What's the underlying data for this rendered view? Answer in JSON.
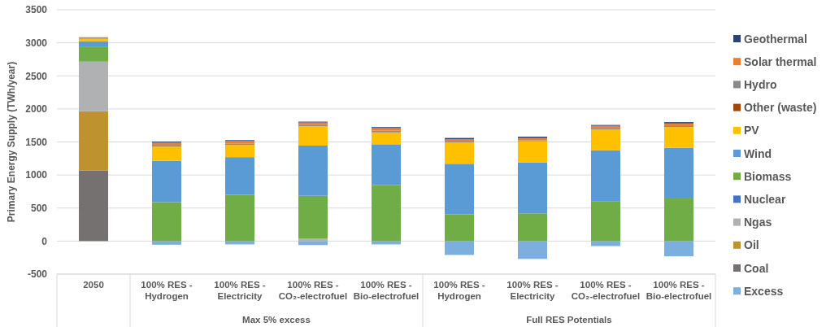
{
  "chart_data": {
    "type": "bar",
    "stacked": true,
    "ylabel": "Primary Energy Supply (TWh/year)",
    "categories": [
      "2050",
      "100% RES - Hydrogen",
      "100% RES - Electricity",
      "100% RES - CO₂-electrofuel",
      "100% RES - Bio-electrofuel",
      "100% RES - Hydrogen",
      "100% RES - Electricity",
      "100% RES - CO₂-electrofuel",
      "100% RES - Bio-electrofuel"
    ],
    "annotations": [
      "Max 5% excess",
      "Full RES Potentials"
    ],
    "ylim": [
      -500,
      3500
    ],
    "yticks": [
      -500,
      0,
      500,
      1000,
      1500,
      2000,
      2500,
      3000,
      3500
    ],
    "grid": "y",
    "legend": "right",
    "series": [
      {
        "name": "Excess",
        "color": "#7cafdd",
        "values": [
          0,
          -55,
          -50,
          -60,
          -50,
          -210,
          -270,
          -75,
          -230
        ]
      },
      {
        "name": "Coal",
        "color": "#757171",
        "values": [
          1070,
          0,
          0,
          0,
          0,
          0,
          0,
          0,
          0
        ]
      },
      {
        "name": "Oil",
        "color": "#bf9230",
        "values": [
          895,
          0,
          0,
          0,
          0,
          0,
          0,
          0,
          0
        ]
      },
      {
        "name": "Ngas",
        "color": "#b0b1b2",
        "values": [
          750,
          0,
          0,
          35,
          0,
          0,
          0,
          0,
          0
        ]
      },
      {
        "name": "Nuclear",
        "color": "#4472c4",
        "values": [
          0,
          0,
          0,
          0,
          0,
          0,
          0,
          0,
          0
        ]
      },
      {
        "name": "Biomass",
        "color": "#70ad47",
        "values": [
          230,
          590,
          700,
          650,
          850,
          405,
          420,
          605,
          645
        ]
      },
      {
        "name": "Wind",
        "color": "#5b9bd5",
        "values": [
          80,
          625,
          570,
          760,
          615,
          765,
          770,
          770,
          765
        ]
      },
      {
        "name": "PV",
        "color": "#ffc000",
        "values": [
          40,
          215,
          185,
          295,
          180,
          320,
          320,
          315,
          315
        ]
      },
      {
        "name": "Other (waste)",
        "color": "#9e480e",
        "values": [
          10,
          0,
          0,
          0,
          0,
          0,
          0,
          0,
          0
        ]
      },
      {
        "name": "Hydro",
        "color": "#8a8a8a",
        "values": [
          10,
          25,
          20,
          15,
          25,
          15,
          15,
          15,
          15
        ]
      },
      {
        "name": "Solar thermal",
        "color": "#ed7d31",
        "values": [
          0,
          35,
          40,
          40,
          40,
          35,
          35,
          40,
          40
        ]
      },
      {
        "name": "Geothermal",
        "color": "#264478",
        "values": [
          0,
          15,
          12,
          12,
          15,
          20,
          20,
          12,
          20
        ]
      }
    ]
  }
}
